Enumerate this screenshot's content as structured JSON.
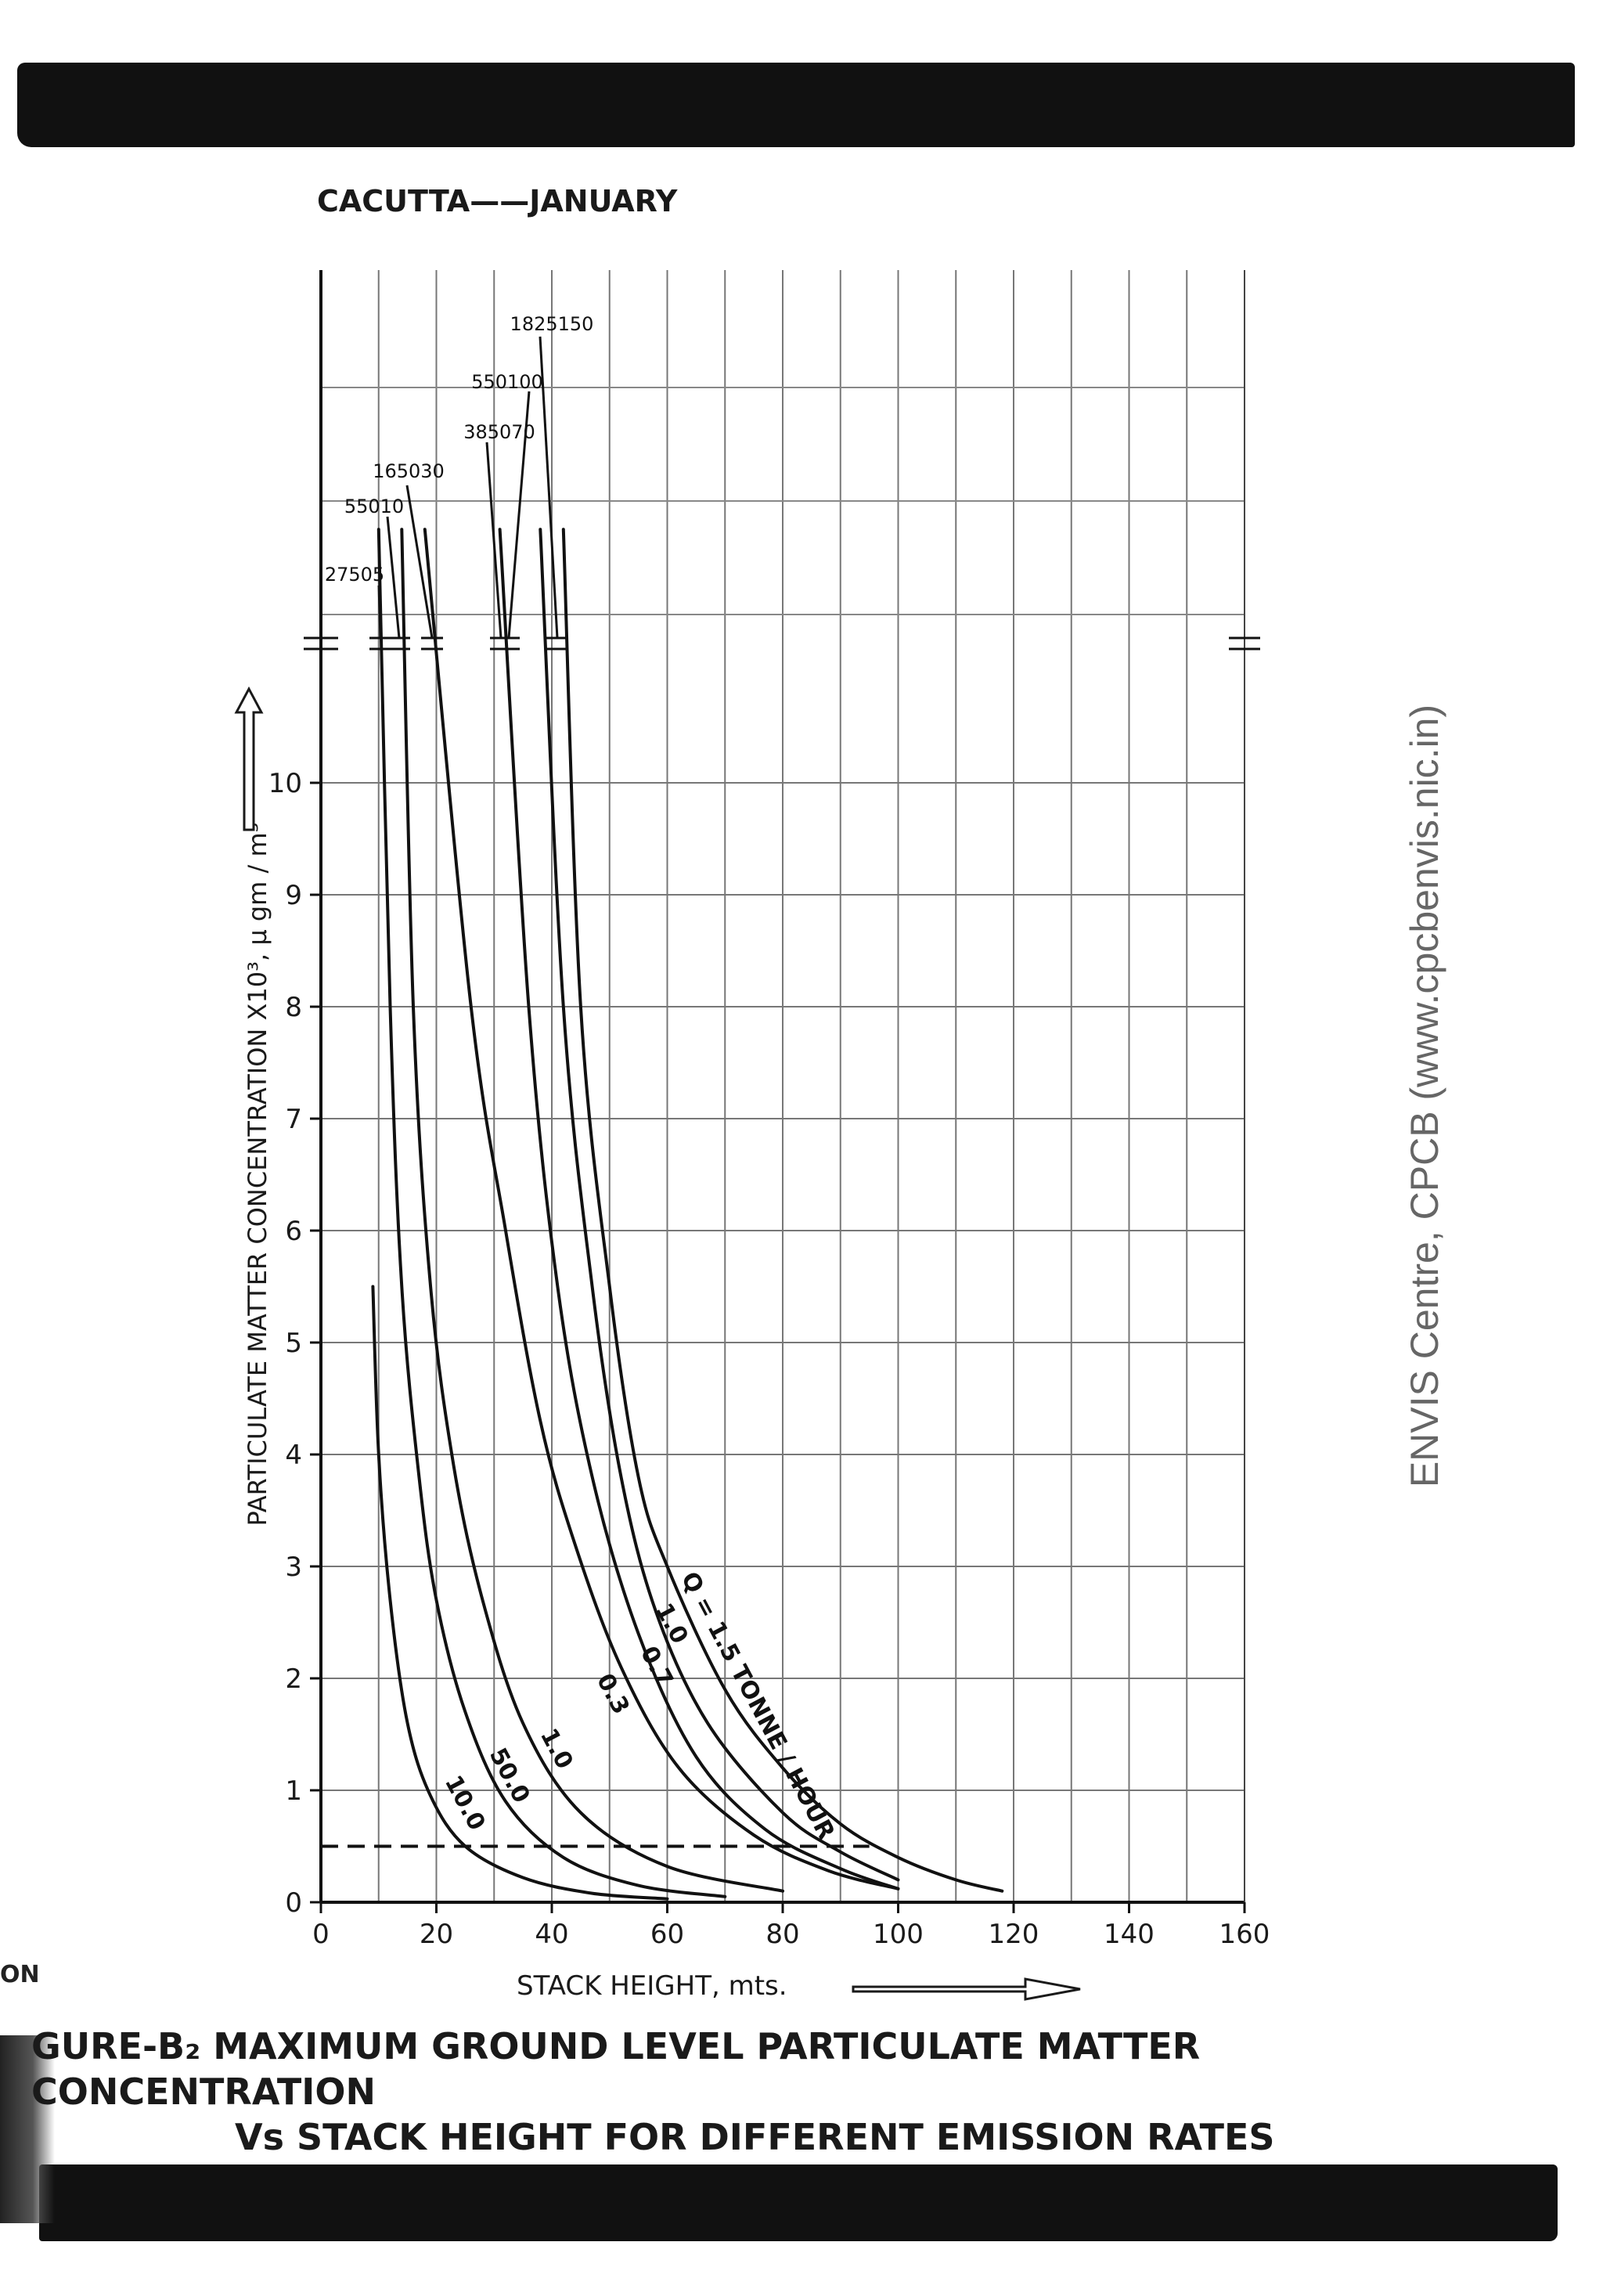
{
  "chart_data": {
    "type": "line",
    "title": "CACUTTA——JANUARY",
    "xlabel": "STACK HEIGHT, mts.",
    "ylabel": "PARTICULATE MATTER CONCENTRATION X10³, µ gm / m³",
    "xlim": [
      0,
      160
    ],
    "ylim": [
      0,
      10
    ],
    "x_ticks": [
      "0",
      "20",
      "40",
      "60",
      "80",
      "100",
      "120",
      "140",
      "160"
    ],
    "y_ticks": [
      "0",
      "1",
      "2",
      "3",
      "4",
      "5",
      "6",
      "7",
      "8",
      "9",
      "10"
    ],
    "y_axis_break": "above 10",
    "grid": true,
    "reference_line": {
      "style": "dashed",
      "y": 0.5,
      "x_range": [
        0,
        95
      ]
    },
    "series": [
      {
        "name": "Q = 1.5 TONNE / HOUR",
        "top_label": "1825150",
        "points": [
          [
            42,
            11
          ],
          [
            45,
            8
          ],
          [
            50,
            5.5
          ],
          [
            55,
            3.8
          ],
          [
            60,
            3
          ],
          [
            70,
            1.9
          ],
          [
            80,
            1.2
          ],
          [
            90,
            0.7
          ],
          [
            100,
            0.4
          ],
          [
            110,
            0.2
          ],
          [
            118,
            0.1
          ]
        ]
      },
      {
        "name": "1.0",
        "top_label": "550100",
        "points": [
          [
            38,
            11
          ],
          [
            42,
            8
          ],
          [
            47,
            5.5
          ],
          [
            52,
            3.8
          ],
          [
            58,
            2.6
          ],
          [
            67,
            1.6
          ],
          [
            80,
            0.8
          ],
          [
            90,
            0.45
          ],
          [
            100,
            0.2
          ]
        ]
      },
      {
        "name": "0.7",
        "top_label": "385070",
        "points": [
          [
            31,
            11
          ],
          [
            36,
            8
          ],
          [
            41,
            5.5
          ],
          [
            47,
            3.8
          ],
          [
            55,
            2.4
          ],
          [
            65,
            1.3
          ],
          [
            77,
            0.65
          ],
          [
            90,
            0.3
          ],
          [
            100,
            0.12
          ]
        ]
      },
      {
        "name": "0.3",
        "top_label": "165030",
        "points": [
          [
            18,
            11
          ],
          [
            26,
            8
          ],
          [
            32,
            6
          ],
          [
            38,
            4.3
          ],
          [
            44,
            3.2
          ],
          [
            52,
            2.1
          ],
          [
            62,
            1.2
          ],
          [
            75,
            0.6
          ],
          [
            88,
            0.28
          ],
          [
            100,
            0.12
          ]
        ]
      },
      {
        "name": "1.0",
        "top_label": "55010",
        "points": [
          [
            14,
            11
          ],
          [
            16,
            8
          ],
          [
            19,
            5.5
          ],
          [
            23,
            3.9
          ],
          [
            28,
            2.7
          ],
          [
            35,
            1.6
          ],
          [
            45,
            0.8
          ],
          [
            60,
            0.32
          ],
          [
            80,
            0.1
          ]
        ]
      },
      {
        "name": "50.0",
        "top_label": "27505",
        "points": [
          [
            10,
            11
          ],
          [
            12,
            8
          ],
          [
            14,
            5.5
          ],
          [
            17,
            3.8
          ],
          [
            20,
            2.7
          ],
          [
            25,
            1.7
          ],
          [
            32,
            0.9
          ],
          [
            42,
            0.4
          ],
          [
            55,
            0.15
          ],
          [
            70,
            0.05
          ]
        ]
      },
      {
        "name": "10.0",
        "points": [
          [
            9,
            5.5
          ],
          [
            10,
            4
          ],
          [
            12,
            2.7
          ],
          [
            15,
            1.6
          ],
          [
            19,
            0.95
          ],
          [
            25,
            0.5
          ],
          [
            35,
            0.22
          ],
          [
            47,
            0.08
          ],
          [
            60,
            0.03
          ]
        ]
      }
    ]
  },
  "watermark": "ENVIS Centre, CPCB (www.cpcbenvis.nic.in)",
  "caption": {
    "line1": "GURE-B₂ MAXIMUM GROUND LEVEL PARTICULATE MATTER CONCENTRATION",
    "line2": "Vs STACK HEIGHT FOR DIFFERENT EMISSION RATES"
  },
  "page_fragment": "ON"
}
